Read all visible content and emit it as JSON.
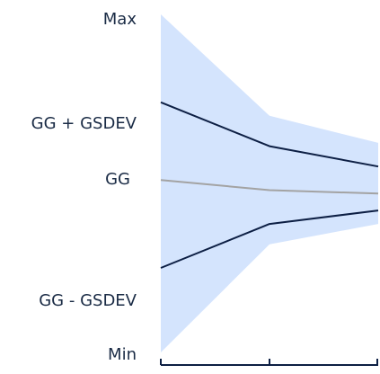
{
  "chart_data": {
    "type": "area",
    "title": "",
    "xlabel": "",
    "ylabel": "",
    "x": [
      1,
      2,
      3
    ],
    "xlim": [
      1,
      3
    ],
    "ylim": [
      0,
      100
    ],
    "y_tick_labels": [
      {
        "value": 100,
        "label": "Max"
      },
      {
        "value": 69,
        "label": "GG + GSDEV"
      },
      {
        "value": 51,
        "label": "GG"
      },
      {
        "value": 16,
        "label": "GG - GSDEV"
      },
      {
        "value": 0,
        "label": "Min"
      }
    ],
    "band": {
      "upper": [
        100,
        70,
        62
      ],
      "lower": [
        0,
        32,
        38
      ]
    },
    "series": [
      {
        "values": [
          74,
          61,
          55
        ],
        "color": "#0d1f44"
      },
      {
        "values": [
          51,
          48,
          47
        ],
        "color": "#a3a3a3"
      },
      {
        "values": [
          25,
          38,
          42
        ],
        "color": "#0d1f44"
      }
    ],
    "band_color": "#d4e4fd",
    "axis_color": "#0d1f44",
    "grid": false,
    "legend": "none"
  }
}
